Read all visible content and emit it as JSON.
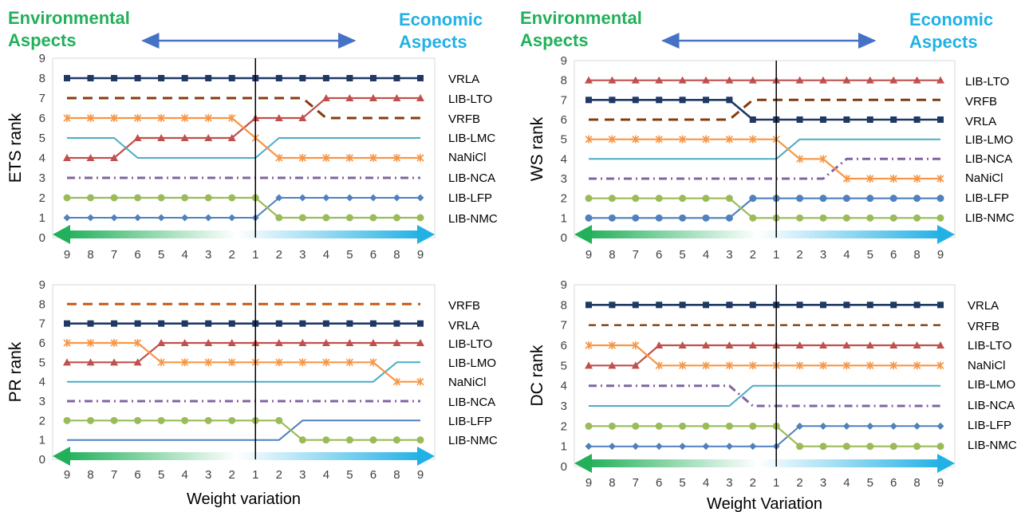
{
  "header": {
    "left_title": [
      "Environmental",
      "Aspects"
    ],
    "right_title": [
      "Economic",
      "Aspects"
    ],
    "left_color": "#22b05a",
    "right_color": "#22b1e4"
  },
  "colors": {
    "VRLA": "#1f3864",
    "LIB-LTO": "#c0504d",
    "VRFB": "#843c0c",
    "VRFB_PR": "#c55a11",
    "LIB-LMC": "#4bacc6",
    "LIB-LMO": "#4bacc6",
    "NaNiCl": "#f79646",
    "LIB-NCA": "#8064a2",
    "LIB-LFP": "#4f81bd",
    "LIB-NMC": "#9bbb59",
    "arrow": "#4472c4",
    "grid": "#d9d9d9"
  },
  "chart_data": [
    {
      "type": "line",
      "ylabel": "ETS rank",
      "xlabel": "",
      "x": [
        "9",
        "8",
        "7",
        "6",
        "5",
        "4",
        "3",
        "2",
        "1",
        "2",
        "3",
        "4",
        "5",
        "6",
        "8",
        "9"
      ],
      "ylim": [
        0,
        9
      ],
      "legend_order": [
        "VRLA",
        "LIB-LTO",
        "VRFB",
        "LIB-LMC",
        "NaNiCl",
        "LIB-NCA",
        "LIB-LFP",
        "LIB-NMC"
      ],
      "series": [
        {
          "name": "VRLA",
          "style": "square",
          "values": [
            8,
            8,
            8,
            8,
            8,
            8,
            8,
            8,
            8,
            8,
            8,
            8,
            8,
            8,
            8,
            8
          ]
        },
        {
          "name": "LIB-LTO",
          "style": "triangle",
          "values": [
            4,
            4,
            4,
            5,
            5,
            5,
            5,
            5,
            6,
            6,
            6,
            7,
            7,
            7,
            7,
            7
          ]
        },
        {
          "name": "VRFB",
          "style": "dash",
          "values": [
            7,
            7,
            7,
            7,
            7,
            7,
            7,
            7,
            7,
            7,
            7,
            6,
            6,
            6,
            6,
            6
          ]
        },
        {
          "name": "LIB-LMC",
          "style": "plain",
          "values": [
            5,
            5,
            5,
            4,
            4,
            4,
            4,
            4,
            4,
            5,
            5,
            5,
            5,
            5,
            5,
            5
          ]
        },
        {
          "name": "NaNiCl",
          "style": "star",
          "values": [
            6,
            6,
            6,
            6,
            6,
            6,
            6,
            6,
            5,
            4,
            4,
            4,
            4,
            4,
            4,
            4
          ]
        },
        {
          "name": "LIB-NCA",
          "style": "dashdot",
          "values": [
            3,
            3,
            3,
            3,
            3,
            3,
            3,
            3,
            3,
            3,
            3,
            3,
            3,
            3,
            3,
            3
          ]
        },
        {
          "name": "LIB-LFP",
          "style": "diamond",
          "values": [
            1,
            1,
            1,
            1,
            1,
            1,
            1,
            1,
            1,
            2,
            2,
            2,
            2,
            2,
            2,
            2
          ]
        },
        {
          "name": "LIB-NMC",
          "style": "circle",
          "values": [
            2,
            2,
            2,
            2,
            2,
            2,
            2,
            2,
            2,
            1,
            1,
            1,
            1,
            1,
            1,
            1
          ]
        }
      ]
    },
    {
      "type": "line",
      "ylabel": "WS rank",
      "xlabel": "",
      "x": [
        "9",
        "8",
        "7",
        "6",
        "5",
        "4",
        "3",
        "2",
        "1",
        "2",
        "3",
        "4",
        "5",
        "6",
        "8",
        "9"
      ],
      "ylim": [
        0,
        9
      ],
      "legend_order": [
        "LIB-LTO",
        "VRFB",
        "VRLA",
        "LIB-LMO",
        "LIB-NCA",
        "NaNiCl",
        "LIB-LFP",
        "LIB-NMC"
      ],
      "series": [
        {
          "name": "LIB-LTO",
          "style": "triangle",
          "values": [
            8,
            8,
            8,
            8,
            8,
            8,
            8,
            8,
            8,
            8,
            8,
            8,
            8,
            8,
            8,
            8
          ]
        },
        {
          "name": "VRFB",
          "style": "dash",
          "values": [
            6,
            6,
            6,
            6,
            6,
            6,
            6,
            7,
            7,
            7,
            7,
            7,
            7,
            7,
            7,
            7
          ]
        },
        {
          "name": "VRLA",
          "style": "square",
          "values": [
            7,
            7,
            7,
            7,
            7,
            7,
            7,
            6,
            6,
            6,
            6,
            6,
            6,
            6,
            6,
            6
          ]
        },
        {
          "name": "LIB-LMO",
          "style": "plain",
          "values": [
            4,
            4,
            4,
            4,
            4,
            4,
            4,
            4,
            4,
            5,
            5,
            5,
            5,
            5,
            5,
            5
          ]
        },
        {
          "name": "LIB-NCA",
          "style": "dashdot",
          "values": [
            3,
            3,
            3,
            3,
            3,
            3,
            3,
            3,
            3,
            3,
            3,
            4,
            4,
            4,
            4,
            4
          ]
        },
        {
          "name": "NaNiCl",
          "style": "star",
          "values": [
            5,
            5,
            5,
            5,
            5,
            5,
            5,
            5,
            5,
            4,
            4,
            3,
            3,
            3,
            3,
            3
          ]
        },
        {
          "name": "LIB-LFP",
          "style": "circleblue",
          "values": [
            1,
            1,
            1,
            1,
            1,
            1,
            1,
            2,
            2,
            2,
            2,
            2,
            2,
            2,
            2,
            2
          ]
        },
        {
          "name": "LIB-NMC",
          "style": "circle",
          "values": [
            2,
            2,
            2,
            2,
            2,
            2,
            2,
            1,
            1,
            1,
            1,
            1,
            1,
            1,
            1,
            1
          ]
        }
      ]
    },
    {
      "type": "line",
      "ylabel": "PR rank",
      "xlabel": "Weight variation",
      "x": [
        "9",
        "8",
        "7",
        "6",
        "5",
        "4",
        "3",
        "2",
        "1",
        "2",
        "3",
        "4",
        "5",
        "6",
        "8",
        "9"
      ],
      "ylim": [
        0,
        9
      ],
      "legend_order": [
        "VRFB",
        "VRLA",
        "LIB-LTO",
        "LIB-LMO",
        "NaNiCl",
        "LIB-NCA",
        "LIB-LFP",
        "LIB-NMC"
      ],
      "series": [
        {
          "name": "VRFB",
          "style": "dashorange",
          "values": [
            8,
            8,
            8,
            8,
            8,
            8,
            8,
            8,
            8,
            8,
            8,
            8,
            8,
            8,
            8,
            8
          ]
        },
        {
          "name": "VRLA",
          "style": "square",
          "values": [
            7,
            7,
            7,
            7,
            7,
            7,
            7,
            7,
            7,
            7,
            7,
            7,
            7,
            7,
            7,
            7
          ]
        },
        {
          "name": "LIB-LTO",
          "style": "triangle",
          "values": [
            5,
            5,
            5,
            5,
            6,
            6,
            6,
            6,
            6,
            6,
            6,
            6,
            6,
            6,
            6,
            6
          ]
        },
        {
          "name": "LIB-LMO",
          "style": "plain",
          "values": [
            4,
            4,
            4,
            4,
            4,
            4,
            4,
            4,
            4,
            4,
            4,
            4,
            4,
            4,
            5,
            5
          ]
        },
        {
          "name": "NaNiCl",
          "style": "star",
          "values": [
            6,
            6,
            6,
            6,
            5,
            5,
            5,
            5,
            5,
            5,
            5,
            5,
            5,
            5,
            4,
            4
          ]
        },
        {
          "name": "LIB-NCA",
          "style": "dashdot",
          "values": [
            3,
            3,
            3,
            3,
            3,
            3,
            3,
            3,
            3,
            3,
            3,
            3,
            3,
            3,
            3,
            3
          ]
        },
        {
          "name": "LIB-LFP",
          "style": "plainblue",
          "values": [
            1,
            1,
            1,
            1,
            1,
            1,
            1,
            1,
            1,
            1,
            2,
            2,
            2,
            2,
            2,
            2
          ]
        },
        {
          "name": "LIB-NMC",
          "style": "circle",
          "values": [
            2,
            2,
            2,
            2,
            2,
            2,
            2,
            2,
            2,
            2,
            1,
            1,
            1,
            1,
            1,
            1
          ]
        }
      ]
    },
    {
      "type": "line",
      "ylabel": "DC rank",
      "xlabel": "Weight Variation",
      "x": [
        "9",
        "8",
        "7",
        "6",
        "5",
        "4",
        "3",
        "2",
        "1",
        "2",
        "3",
        "4",
        "5",
        "6",
        "8",
        "9"
      ],
      "ylim": [
        0,
        9
      ],
      "legend_order": [
        "VRLA",
        "VRFB",
        "LIB-LTO",
        "NaNiCl",
        "LIB-LMO",
        "LIB-NCA",
        "LIB-LFP",
        "LIB-NMC"
      ],
      "series": [
        {
          "name": "VRLA",
          "style": "square",
          "values": [
            8,
            8,
            8,
            8,
            8,
            8,
            8,
            8,
            8,
            8,
            8,
            8,
            8,
            8,
            8,
            8
          ]
        },
        {
          "name": "VRFB",
          "style": "dashthin",
          "values": [
            7,
            7,
            7,
            7,
            7,
            7,
            7,
            7,
            7,
            7,
            7,
            7,
            7,
            7,
            7,
            7
          ]
        },
        {
          "name": "LIB-LTO",
          "style": "triangle",
          "values": [
            5,
            5,
            5,
            6,
            6,
            6,
            6,
            6,
            6,
            6,
            6,
            6,
            6,
            6,
            6,
            6
          ]
        },
        {
          "name": "NaNiCl",
          "style": "star",
          "values": [
            6,
            6,
            6,
            5,
            5,
            5,
            5,
            5,
            5,
            5,
            5,
            5,
            5,
            5,
            5,
            5
          ]
        },
        {
          "name": "LIB-LMO",
          "style": "plain",
          "values": [
            3,
            3,
            3,
            3,
            3,
            3,
            3,
            4,
            4,
            4,
            4,
            4,
            4,
            4,
            4,
            4
          ]
        },
        {
          "name": "LIB-NCA",
          "style": "dashdot",
          "values": [
            4,
            4,
            4,
            4,
            4,
            4,
            4,
            3,
            3,
            3,
            3,
            3,
            3,
            3,
            3,
            3
          ]
        },
        {
          "name": "LIB-LFP",
          "style": "diamond",
          "values": [
            1,
            1,
            1,
            1,
            1,
            1,
            1,
            1,
            1,
            2,
            2,
            2,
            2,
            2,
            2,
            2
          ]
        },
        {
          "name": "LIB-NMC",
          "style": "circle",
          "values": [
            2,
            2,
            2,
            2,
            2,
            2,
            2,
            2,
            2,
            1,
            1,
            1,
            1,
            1,
            1,
            1
          ]
        }
      ]
    }
  ]
}
